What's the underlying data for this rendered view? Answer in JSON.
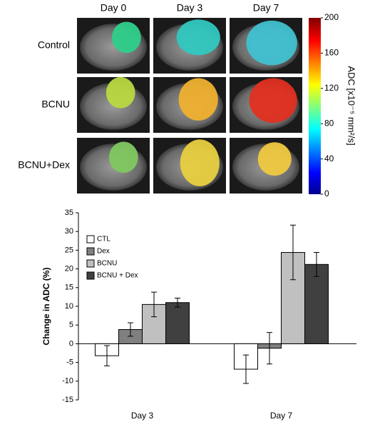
{
  "image_panel": {
    "columns": [
      "Day 0",
      "Day 3",
      "Day 7"
    ],
    "rows": [
      "Control",
      "BCNU",
      "BCNU+Dex"
    ],
    "colorbar": {
      "label": "ADC [x10⁻⁵ mm²/s]",
      "lim": [
        0,
        200
      ],
      "ticks": [
        0,
        40,
        80,
        120,
        160,
        200
      ]
    }
  },
  "chart_data": {
    "type": "bar",
    "ylabel": "Change in ADC (%)",
    "categories": [
      "Day 3",
      "Day 7"
    ],
    "series": [
      {
        "name": "CTL",
        "color": "#ffffff",
        "values": [
          -3.2,
          -6.8
        ],
        "errors": [
          2.7,
          3.8
        ]
      },
      {
        "name": "Dex",
        "color": "#808080",
        "values": [
          3.8,
          -1.2
        ],
        "errors": [
          1.8,
          4.2
        ]
      },
      {
        "name": "BCNU",
        "color": "#c0c0c0",
        "values": [
          10.5,
          24.4
        ],
        "errors": [
          3.3,
          7.3
        ]
      },
      {
        "name": "BCNU + Dex",
        "color": "#404040",
        "values": [
          11.0,
          21.2
        ],
        "errors": [
          1.2,
          3.2
        ]
      }
    ],
    "ylim": [
      -15,
      35
    ],
    "yticks": [
      -15,
      -10,
      -5,
      0,
      5,
      10,
      15,
      20,
      25,
      30,
      35
    ],
    "legend": "upper-left"
  }
}
